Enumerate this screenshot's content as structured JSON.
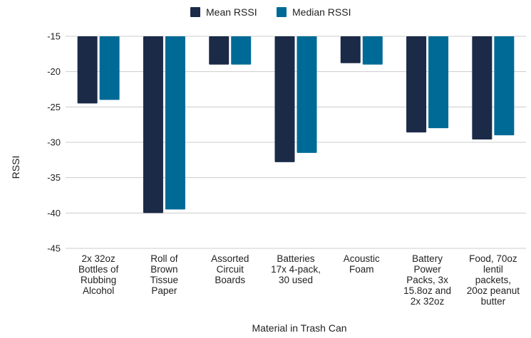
{
  "chart_data": {
    "type": "bar",
    "title": "",
    "xlabel": "Material in Trash Can",
    "ylabel": "RSSI",
    "ylim": [
      -45,
      -15
    ],
    "yticks": [
      -15,
      -20,
      -25,
      -30,
      -35,
      -40,
      -45
    ],
    "grid": true,
    "legend_position": "top-center",
    "categories": [
      [
        "2x 32oz",
        "Bottles of",
        "Rubbing",
        "Alcohol"
      ],
      [
        "Roll of",
        "Brown",
        "Tissue",
        "Paper"
      ],
      [
        "Assorted",
        "Circuit",
        "Boards"
      ],
      [
        "Batteries",
        "17x 4-pack,",
        "30 used"
      ],
      [
        "Acoustic",
        "Foam"
      ],
      [
        "Battery",
        "Power",
        "Packs, 3x",
        "15.8oz and",
        "2x 32oz"
      ],
      [
        "Food, 70oz",
        "lentil",
        "packets,",
        "20oz peanut",
        "butter"
      ]
    ],
    "series": [
      {
        "name": "Mean RSSI",
        "color": "#1b2a47",
        "values": [
          -24.5,
          -40.0,
          -19.0,
          -32.8,
          -18.8,
          -28.6,
          -29.6
        ]
      },
      {
        "name": "Median RSSI",
        "color": "#006a96",
        "values": [
          -24.0,
          -39.5,
          -19.0,
          -31.5,
          -19.0,
          -28.0,
          -29.0
        ]
      }
    ]
  }
}
